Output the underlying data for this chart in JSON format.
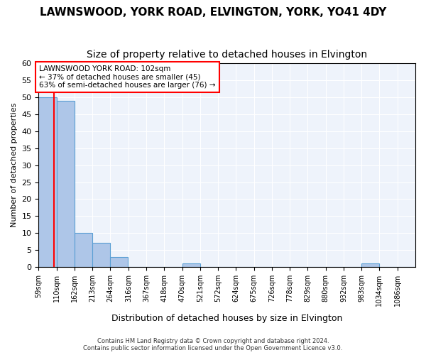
{
  "title": "LAWNSWOOD, YORK ROAD, ELVINGTON, YORK, YO41 4DY",
  "subtitle": "Size of property relative to detached houses in Elvington",
  "xlabel": "Distribution of detached houses by size in Elvington",
  "ylabel": "Number of detached properties",
  "bin_labels": [
    "59sqm",
    "110sqm",
    "162sqm",
    "213sqm",
    "264sqm",
    "316sqm",
    "367sqm",
    "418sqm",
    "470sqm",
    "521sqm",
    "572sqm",
    "624sqm",
    "675sqm",
    "726sqm",
    "778sqm",
    "829sqm",
    "880sqm",
    "932sqm",
    "983sqm",
    "1034sqm",
    "1086sqm"
  ],
  "bin_edges": [
    59,
    110,
    162,
    213,
    264,
    316,
    367,
    418,
    470,
    521,
    572,
    624,
    675,
    726,
    778,
    829,
    880,
    932,
    983,
    1034,
    1086
  ],
  "bar_heights": [
    50,
    49,
    10,
    7,
    3,
    0,
    0,
    0,
    1,
    0,
    0,
    0,
    0,
    0,
    0,
    0,
    0,
    0,
    1,
    0,
    0
  ],
  "bar_color": "#aec6e8",
  "bar_edge_color": "#5a9fd4",
  "red_line_x": 102,
  "ylim": [
    0,
    60
  ],
  "yticks": [
    0,
    5,
    10,
    15,
    20,
    25,
    30,
    35,
    40,
    45,
    50,
    55,
    60
  ],
  "annotation_line1": "LAWNSWOOD YORK ROAD: 102sqm",
  "annotation_line2": "← 37% of detached houses are smaller (45)",
  "annotation_line3": "63% of semi-detached houses are larger (76) →",
  "footer_line1": "Contains HM Land Registry data © Crown copyright and database right 2024.",
  "footer_line2": "Contains public sector information licensed under the Open Government Licence v3.0.",
  "bg_color": "#ffffff",
  "plot_bg_color": "#eef3fb",
  "grid_color": "#ffffff",
  "title_fontsize": 11,
  "subtitle_fontsize": 10
}
